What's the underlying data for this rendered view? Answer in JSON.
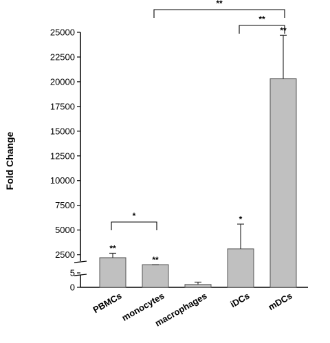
{
  "chart_data": {
    "type": "bar",
    "ylabel": "Fold Change",
    "categories": [
      "PBMCs",
      "monocytes",
      "macrophages",
      "iDCs",
      "mDCs"
    ],
    "values": [
      2200,
      1200,
      1,
      3100,
      20300
    ],
    "errors": [
      450,
      150,
      0.8,
      2500,
      4400
    ],
    "bar_color": "#c0c0c0",
    "y_axis_broken": true,
    "y_lower_range": [
      0,
      5
    ],
    "y_lower_ticks": [
      {
        "v": 0,
        "label": "0"
      },
      {
        "v": 5,
        "label": "5"
      }
    ],
    "y_upper_range": [
      1500,
      25000
    ],
    "y_upper_ticks": [
      {
        "v": 2500,
        "label": "2500"
      },
      {
        "v": 5000,
        "label": "5000"
      },
      {
        "v": 7500,
        "label": "7500"
      },
      {
        "v": 10000,
        "label": "10000"
      },
      {
        "v": 12500,
        "label": "12500"
      },
      {
        "v": 15000,
        "label": "15000"
      },
      {
        "v": 17500,
        "label": "17500"
      },
      {
        "v": 20000,
        "label": "20000"
      },
      {
        "v": 22500,
        "label": "22500"
      },
      {
        "v": 25000,
        "label": "25000"
      }
    ],
    "bar_annotations": [
      "**",
      "**",
      "",
      "*",
      "**"
    ],
    "comparisons": [
      {
        "from": 0,
        "to": 1,
        "label": "*"
      },
      {
        "from": 3,
        "to": 4,
        "label": "**"
      },
      {
        "from": 1,
        "to": 4,
        "label": "**"
      }
    ]
  }
}
